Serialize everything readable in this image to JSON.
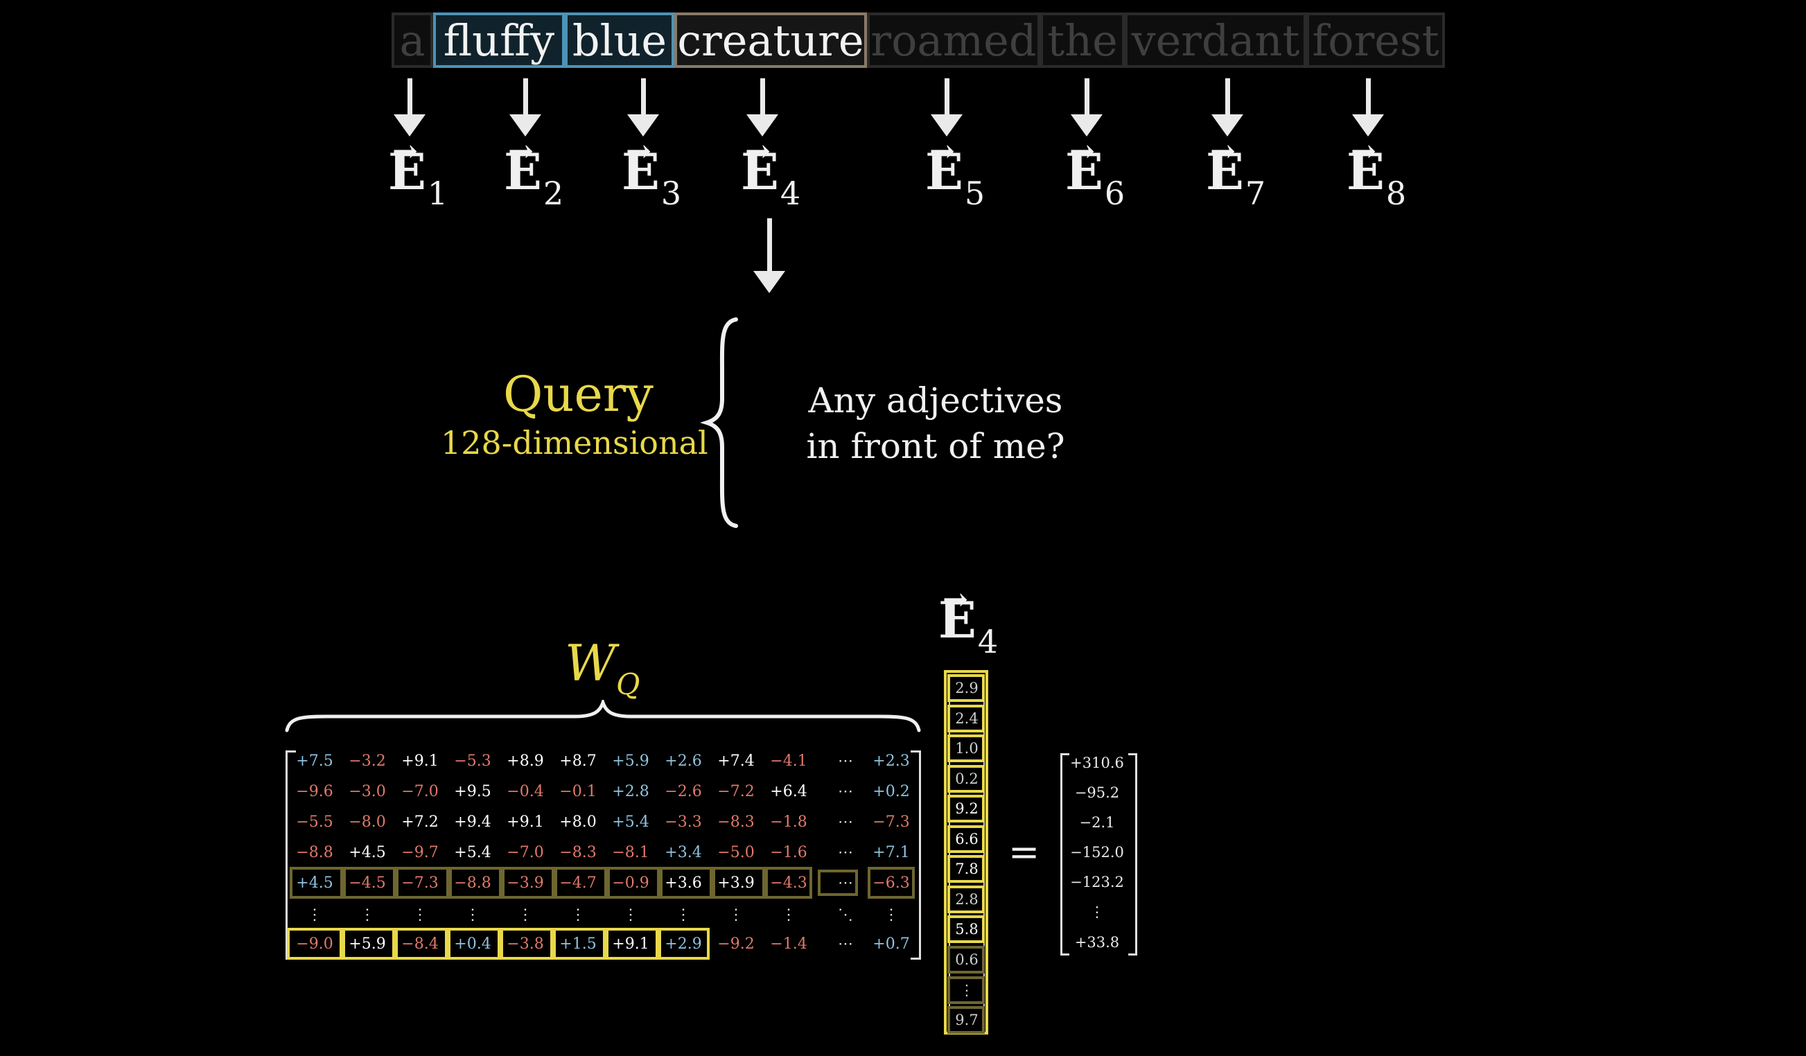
{
  "tokens": [
    "a",
    "fluffy",
    "blue",
    "creature",
    "roamed",
    "the",
    "verdant",
    "forest"
  ],
  "embeddings": [
    {
      "letter": "E",
      "vec": "→",
      "sub": "1"
    },
    {
      "letter": "E",
      "vec": "→",
      "sub": "2"
    },
    {
      "letter": "E",
      "vec": "→",
      "sub": "3"
    },
    {
      "letter": "E",
      "vec": "→",
      "sub": "4"
    },
    {
      "letter": "E",
      "vec": "→",
      "sub": "5"
    },
    {
      "letter": "E",
      "vec": "→",
      "sub": "6"
    },
    {
      "letter": "E",
      "vec": "→",
      "sub": "7"
    },
    {
      "letter": "E",
      "vec": "→",
      "sub": "8"
    }
  ],
  "query": {
    "title": "Query",
    "subtitle": "128-dimensional",
    "question_line1": "Any adjectives",
    "question_line2": "in front of me?"
  },
  "weight_label": {
    "letter": "W",
    "sub": "Q"
  },
  "vector_label": {
    "letter": "E",
    "vec": "→",
    "sub": "4"
  },
  "equals": "=",
  "matrix_rows": [
    [
      "+7.5",
      "−3.2",
      "+9.1",
      "−5.3",
      "+8.9",
      "+8.7",
      "+5.9",
      "+2.6",
      "+7.4",
      "−4.1",
      "⋯",
      "+2.3"
    ],
    [
      "−9.6",
      "−3.0",
      "−7.0",
      "+9.5",
      "−0.4",
      "−0.1",
      "+2.8",
      "−2.6",
      "−7.2",
      "+6.4",
      "⋯",
      "+0.2"
    ],
    [
      "−5.5",
      "−8.0",
      "+7.2",
      "+9.4",
      "+9.1",
      "+8.0",
      "+5.4",
      "−3.3",
      "−8.3",
      "−1.8",
      "⋯",
      "−7.3"
    ],
    [
      "−8.8",
      "+4.5",
      "−9.7",
      "+5.4",
      "−7.0",
      "−8.3",
      "−8.1",
      "+3.4",
      "−5.0",
      "−1.6",
      "⋯",
      "+7.1"
    ],
    [
      "+4.5",
      "−4.5",
      "−7.3",
      "−8.8",
      "−3.9",
      "−4.7",
      "−0.9",
      "+3.6",
      "+3.9",
      "−4.3",
      "⋯",
      "−6.3"
    ],
    [
      "⋮",
      "⋮",
      "⋮",
      "⋮",
      "⋮",
      "⋮",
      "⋮",
      "⋮",
      "⋮",
      "⋮",
      "⋱",
      "⋮"
    ],
    [
      "−9.0",
      "+5.9",
      "−8.4",
      "+0.4",
      "−3.8",
      "+1.5",
      "+9.1",
      "+2.9",
      "−9.2",
      "−1.4",
      "⋯",
      "+0.7"
    ]
  ],
  "vector_values": [
    "2.9",
    "2.4",
    "1.0",
    "0.2",
    "9.2",
    "6.6",
    "7.8",
    "2.8",
    "5.8",
    "0.6",
    "⋮",
    "9.7"
  ],
  "result_values": [
    "+310.6",
    "−95.2",
    "−2.1",
    "−152.0",
    "−123.2",
    "⋮",
    "+33.8"
  ],
  "colors": {
    "accent_yellow": "#e8d84a",
    "positive_blue": "#8fc3e0",
    "negative_red": "#e07a6a",
    "adjective_border": "#4d93b6",
    "noun_border": "#8a7a68"
  }
}
